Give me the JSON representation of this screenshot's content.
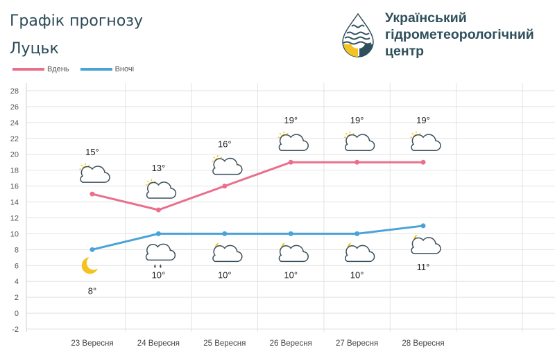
{
  "header": {
    "title_line1": "Графік прогнозу",
    "title_line2": "Луцьк",
    "org_line1": "Український",
    "org_line2": "гідрометеорологічний",
    "org_line3": "центр"
  },
  "colors": {
    "day": "#e96f8c",
    "night": "#4aa3d8",
    "grid": "#e2e2e2",
    "title": "#2b4a58",
    "logo_navy": "#2f4f5c",
    "logo_yellow": "#f4c321"
  },
  "chart_data": {
    "type": "line",
    "categories": [
      "23 Вересня",
      "24 Вересня",
      "25 Вересня",
      "26 Вересня",
      "27 Вересня",
      "28 Вересня"
    ],
    "ylim": [
      -2,
      28
    ],
    "yticks": [
      -2,
      0,
      2,
      4,
      6,
      8,
      10,
      12,
      14,
      16,
      18,
      20,
      22,
      24,
      26,
      28
    ],
    "grid": true,
    "legend_position": "top-left",
    "series": [
      {
        "name": "Вдень",
        "values": [
          15,
          13,
          16,
          19,
          19,
          19
        ],
        "labels": [
          "15°",
          "13°",
          "16°",
          "19°",
          "19°",
          "19°"
        ],
        "icons": [
          "partly-cloudy-day-icon",
          "partly-cloudy-day-icon",
          "partly-cloudy-day-icon",
          "partly-cloudy-day-icon",
          "partly-cloudy-day-icon",
          "partly-cloudy-day-icon"
        ]
      },
      {
        "name": "Вночі",
        "values": [
          8,
          10,
          10,
          10,
          10,
          11
        ],
        "labels": [
          "8°",
          "10°",
          "10°",
          "10°",
          "10°",
          "11°"
        ],
        "icons": [
          "clear-night-icon",
          "cloud-rain-icon",
          "partly-cloudy-night-icon",
          "partly-cloudy-night-icon",
          "partly-cloudy-night-icon",
          "partly-cloudy-night-icon"
        ]
      }
    ]
  }
}
